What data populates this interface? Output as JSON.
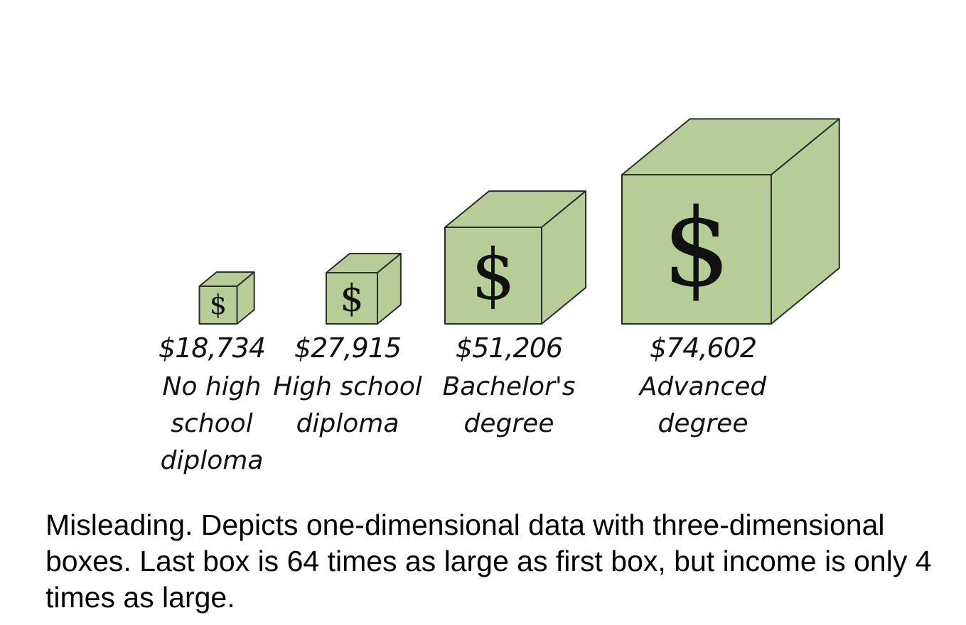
{
  "chart_data": {
    "type": "bar",
    "categories": [
      [
        "No high",
        "school",
        "diploma"
      ],
      [
        "High school",
        "diploma"
      ],
      [
        "Bachelor's",
        "degree"
      ],
      [
        "Advanced",
        "degree"
      ]
    ],
    "values": [
      18734,
      27915,
      51206,
      74602
    ],
    "value_labels": [
      "$18,734",
      "$27,915",
      "$51,206",
      "$74,602"
    ],
    "symbol": "$",
    "colors": {
      "box_fill": "#b7cd97",
      "box_stroke": "#2b2b2b"
    }
  },
  "caption": "Misleading. Depicts one-dimensional data with three-dimensional boxes. Last box is 64 times as large as first box, but income is only 4 times as large."
}
